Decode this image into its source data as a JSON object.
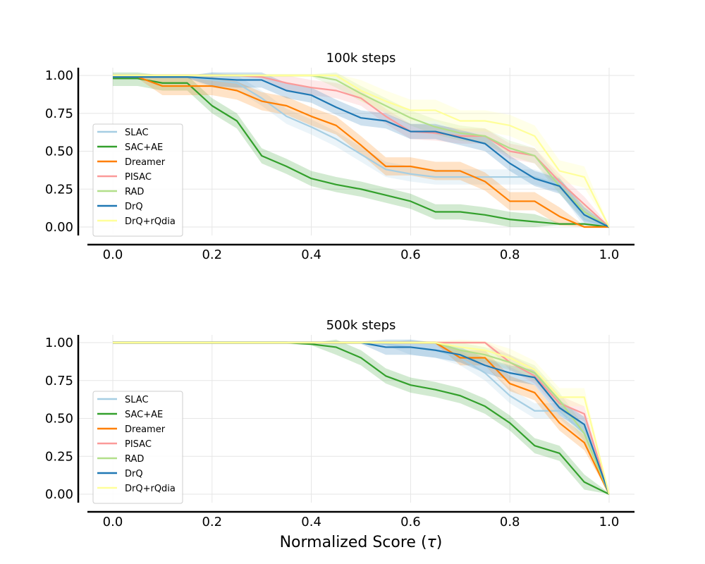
{
  "figure": {
    "xlabel_text": "Normalized Score (",
    "xlabel_symbol": "τ",
    "xlabel_close": ")"
  },
  "chart_data": [
    {
      "type": "line",
      "title": "100k steps",
      "xlabel": "",
      "ylabel": "",
      "xlim": [
        0,
        1
      ],
      "ylim": [
        0,
        1
      ],
      "xticks": [
        "0.0",
        "0.2",
        "0.4",
        "0.6",
        "0.8",
        "1.0"
      ],
      "yticks": [
        "0.00",
        "0.25",
        "0.50",
        "0.75",
        "1.00"
      ],
      "grid": true,
      "legend_position": "center-left",
      "x": [
        0,
        0.05,
        0.1,
        0.15,
        0.2,
        0.25,
        0.3,
        0.35,
        0.4,
        0.45,
        0.5,
        0.55,
        0.6,
        0.65,
        0.7,
        0.75,
        0.8,
        0.85,
        0.9,
        0.95,
        1.0
      ],
      "series": [
        {
          "name": "SLAC",
          "color": "#a6cee3",
          "band": 0.05,
          "values": [
            0.99,
            0.99,
            0.99,
            0.99,
            0.97,
            0.95,
            0.85,
            0.73,
            0.66,
            0.58,
            0.48,
            0.38,
            0.35,
            0.33,
            0.33,
            0.33,
            0.33,
            0.33,
            0.28,
            0.05,
            0.0
          ]
        },
        {
          "name": "SAC+AE",
          "color": "#33a02c",
          "band": 0.05,
          "values": [
            0.98,
            0.98,
            0.95,
            0.95,
            0.8,
            0.7,
            0.47,
            0.4,
            0.32,
            0.28,
            0.25,
            0.21,
            0.17,
            0.1,
            0.1,
            0.08,
            0.05,
            0.035,
            0.02,
            0.02,
            0.0
          ]
        },
        {
          "name": "Dreamer",
          "color": "#ff7f00",
          "band": 0.06,
          "values": [
            0.99,
            0.99,
            0.93,
            0.93,
            0.93,
            0.9,
            0.83,
            0.8,
            0.73,
            0.67,
            0.54,
            0.4,
            0.4,
            0.37,
            0.37,
            0.3,
            0.17,
            0.17,
            0.07,
            0.0,
            0.0
          ]
        },
        {
          "name": "PISAC",
          "color": "#fb9a99",
          "band": 0.05,
          "values": [
            1.0,
            1.0,
            1.0,
            1.0,
            1.0,
            1.0,
            0.99,
            0.95,
            0.92,
            0.9,
            0.85,
            0.73,
            0.63,
            0.62,
            0.6,
            0.6,
            0.5,
            0.47,
            0.3,
            0.15,
            0.0
          ]
        },
        {
          "name": "RAD",
          "color": "#b2df8a",
          "band": 0.05,
          "values": [
            1.0,
            1.0,
            1.0,
            1.0,
            1.0,
            1.0,
            1.0,
            1.0,
            1.0,
            0.97,
            0.88,
            0.8,
            0.72,
            0.66,
            0.62,
            0.6,
            0.52,
            0.47,
            0.27,
            0.1,
            0.0
          ]
        },
        {
          "name": "DrQ",
          "color": "#1f78b4",
          "band": 0.05,
          "values": [
            0.99,
            0.99,
            0.99,
            0.99,
            0.98,
            0.97,
            0.97,
            0.9,
            0.87,
            0.79,
            0.72,
            0.7,
            0.63,
            0.63,
            0.59,
            0.55,
            0.42,
            0.32,
            0.27,
            0.08,
            0.0
          ]
        },
        {
          "name": "DrQ+rQdia",
          "color": "#ffff99",
          "band": 0.07,
          "values": [
            1.0,
            1.0,
            1.0,
            1.0,
            1.0,
            1.0,
            1.0,
            1.0,
            1.0,
            1.0,
            0.9,
            0.83,
            0.77,
            0.77,
            0.7,
            0.7,
            0.67,
            0.6,
            0.37,
            0.33,
            0.0
          ]
        }
      ]
    },
    {
      "type": "line",
      "title": "500k steps",
      "xlabel": "Normalized Score (τ)",
      "ylabel": "",
      "xlim": [
        0,
        1
      ],
      "ylim": [
        0,
        1
      ],
      "xticks": [
        "0.0",
        "0.2",
        "0.4",
        "0.6",
        "0.8",
        "1.0"
      ],
      "yticks": [
        "0.00",
        "0.25",
        "0.50",
        "0.75",
        "1.00"
      ],
      "grid": true,
      "legend_position": "center-left",
      "x": [
        0,
        0.05,
        0.1,
        0.15,
        0.2,
        0.25,
        0.3,
        0.35,
        0.4,
        0.45,
        0.5,
        0.55,
        0.6,
        0.65,
        0.7,
        0.75,
        0.8,
        0.85,
        0.9,
        0.95,
        1.0
      ],
      "series": [
        {
          "name": "SLAC",
          "color": "#a6cee3",
          "band": 0.05,
          "values": [
            1.0,
            1.0,
            1.0,
            1.0,
            1.0,
            1.0,
            1.0,
            1.0,
            1.0,
            1.0,
            1.0,
            0.99,
            0.97,
            0.95,
            0.9,
            0.8,
            0.65,
            0.55,
            0.55,
            0.4,
            0.0
          ]
        },
        {
          "name": "SAC+AE",
          "color": "#33a02c",
          "band": 0.05,
          "values": [
            1.0,
            1.0,
            1.0,
            1.0,
            1.0,
            1.0,
            1.0,
            1.0,
            0.99,
            0.97,
            0.9,
            0.78,
            0.72,
            0.69,
            0.65,
            0.58,
            0.47,
            0.32,
            0.27,
            0.08,
            0.0
          ]
        },
        {
          "name": "Dreamer",
          "color": "#ff7f00",
          "band": 0.05,
          "values": [
            1.0,
            1.0,
            1.0,
            1.0,
            1.0,
            1.0,
            1.0,
            1.0,
            1.0,
            1.0,
            1.0,
            1.0,
            1.0,
            1.0,
            0.9,
            0.9,
            0.73,
            0.67,
            0.47,
            0.34,
            0.0
          ]
        },
        {
          "name": "PISAC",
          "color": "#fb9a99",
          "band": 0.05,
          "values": [
            1.0,
            1.0,
            1.0,
            1.0,
            1.0,
            1.0,
            1.0,
            1.0,
            1.0,
            1.0,
            1.0,
            1.0,
            1.0,
            1.0,
            1.0,
            1.0,
            0.87,
            0.78,
            0.6,
            0.53,
            0.0
          ]
        },
        {
          "name": "RAD",
          "color": "#b2df8a",
          "band": 0.05,
          "values": [
            1.0,
            1.0,
            1.0,
            1.0,
            1.0,
            1.0,
            1.0,
            1.0,
            1.0,
            1.0,
            1.0,
            1.0,
            1.0,
            1.0,
            0.95,
            0.92,
            0.87,
            0.8,
            0.62,
            0.4,
            0.0
          ]
        },
        {
          "name": "DrQ",
          "color": "#1f78b4",
          "band": 0.05,
          "values": [
            1.0,
            1.0,
            1.0,
            1.0,
            1.0,
            1.0,
            1.0,
            1.0,
            1.0,
            1.0,
            1.0,
            0.97,
            0.97,
            0.95,
            0.92,
            0.85,
            0.8,
            0.77,
            0.57,
            0.46,
            0.0
          ]
        },
        {
          "name": "DrQ+rQdia",
          "color": "#ffff99",
          "band": 0.06,
          "values": [
            1.0,
            1.0,
            1.0,
            1.0,
            1.0,
            1.0,
            1.0,
            1.0,
            1.0,
            1.0,
            1.0,
            1.0,
            1.0,
            1.0,
            0.97,
            0.95,
            0.9,
            0.82,
            0.64,
            0.64,
            0.0
          ]
        }
      ]
    }
  ]
}
